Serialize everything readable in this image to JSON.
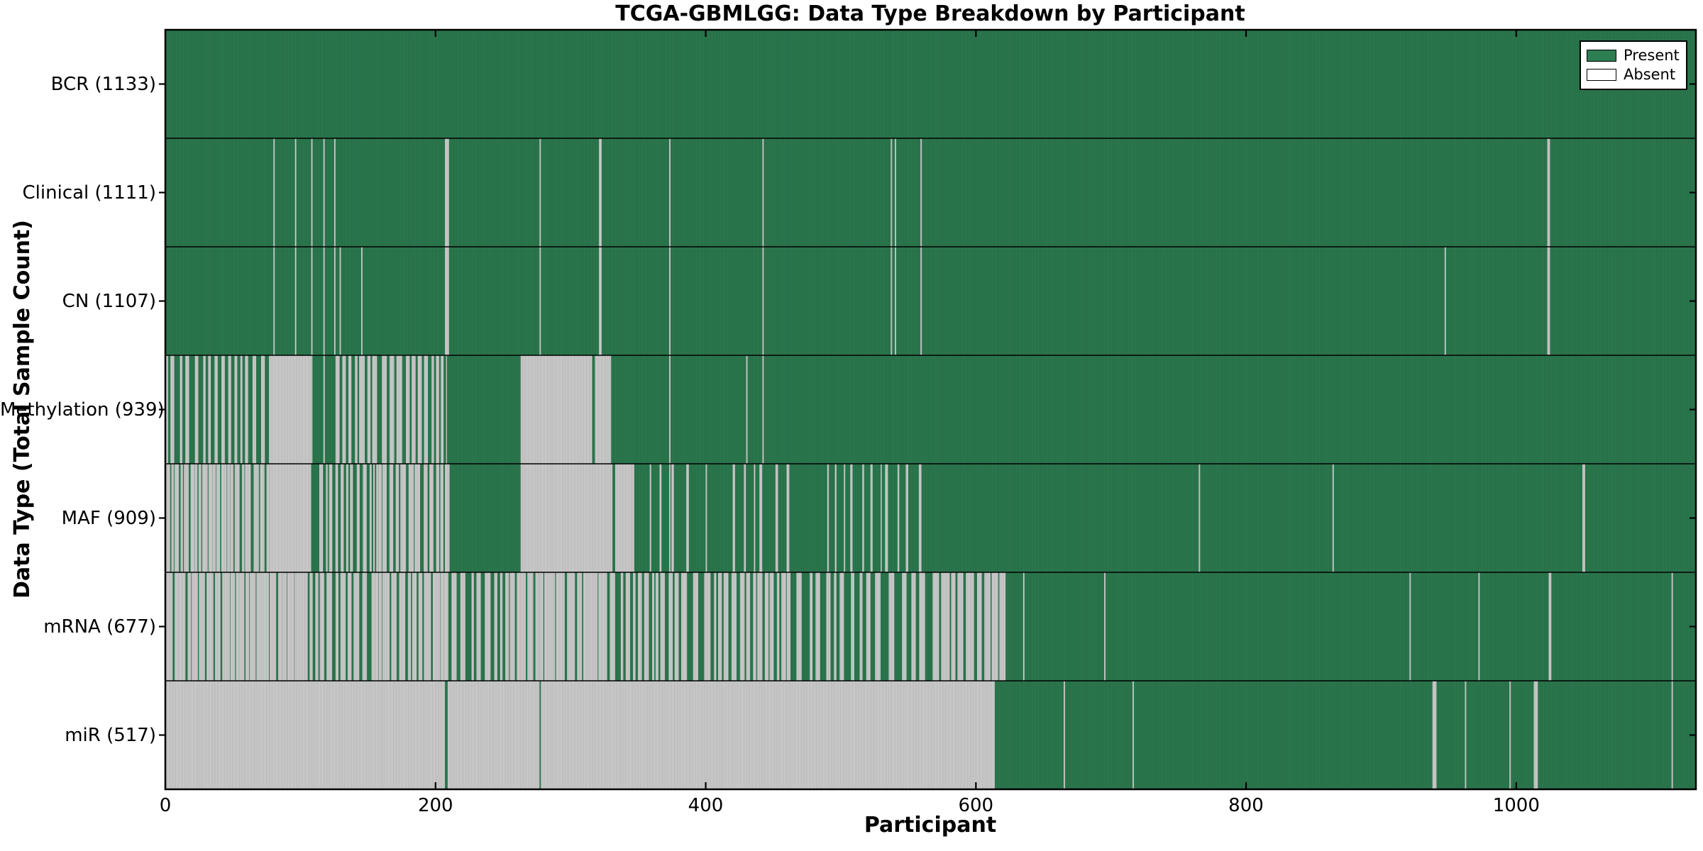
{
  "page": {
    "title": "TCGA-GBMLGG: Data Type Breakdown by Participant",
    "xlabel": "Participant",
    "ylabel": "Data Type (Total Sample Count)"
  },
  "legend": {
    "items": [
      {
        "label": "Present",
        "color": "#2d7e52"
      },
      {
        "label": "Absent",
        "color": "#ffffff"
      }
    ]
  },
  "chart_data": {
    "type": "heatmap",
    "title": "TCGA-GBMLGG: Data Type Breakdown by Participant",
    "xlabel": "Participant",
    "ylabel": "Data Type (Total Sample Count)",
    "x_domain": [
      0,
      1133
    ],
    "x_ticks": [
      0,
      200,
      400,
      600,
      800,
      1000
    ],
    "grid": "row-boundaries",
    "legend_position": "upper-right",
    "colors": {
      "present": "#2d7e52",
      "absent": "#d6d6d6",
      "cell_edge": "rgba(0,0,0,0.30)",
      "spine": "#000000"
    },
    "rows": [
      {
        "label": "BCR (1133)",
        "name": "BCR",
        "total_samples": 1133,
        "absent": [],
        "mixed": []
      },
      {
        "label": "Clinical (1111)",
        "name": "Clinical",
        "total_samples": 1111,
        "absent": [
          [
            80,
            81
          ],
          [
            96,
            97
          ],
          [
            108,
            109
          ],
          [
            117,
            118
          ],
          [
            125,
            126
          ],
          [
            207,
            210
          ],
          [
            277,
            278
          ],
          [
            321,
            323
          ],
          [
            373,
            374
          ],
          [
            442,
            443
          ],
          [
            537,
            538
          ],
          [
            540,
            541
          ],
          [
            559,
            560
          ],
          [
            1023,
            1025
          ]
        ],
        "mixed": []
      },
      {
        "label": "CN (1107)",
        "name": "CN",
        "total_samples": 1107,
        "absent": [
          [
            80,
            81
          ],
          [
            96,
            97
          ],
          [
            108,
            109
          ],
          [
            117,
            118
          ],
          [
            125,
            126
          ],
          [
            129,
            130
          ],
          [
            145,
            146
          ],
          [
            207,
            210
          ],
          [
            277,
            278
          ],
          [
            321,
            323
          ],
          [
            373,
            374
          ],
          [
            442,
            443
          ],
          [
            537,
            538
          ],
          [
            540,
            541
          ],
          [
            559,
            560
          ],
          [
            947,
            948
          ],
          [
            1023,
            1025
          ]
        ],
        "mixed": []
      },
      {
        "label": "Methylation (939)",
        "name": "Methylation",
        "total_samples": 939,
        "absent": [
          [
            77,
            108
          ],
          [
            263,
            316
          ],
          [
            318,
            330
          ],
          [
            373,
            374
          ],
          [
            430,
            431
          ],
          [
            442,
            443
          ]
        ],
        "mixed": [
          {
            "s": 0,
            "e": 77,
            "f": 0.45,
            "w": 2
          },
          {
            "s": 108,
            "e": 126,
            "f": 0.12,
            "w": 1
          },
          {
            "s": 126,
            "e": 208,
            "f": 0.55,
            "w": 3
          }
        ]
      },
      {
        "label": "MAF (909)",
        "name": "MAF",
        "total_samples": 909,
        "absent": [
          [
            77,
            108
          ],
          [
            263,
            331
          ],
          [
            333,
            345
          ],
          [
            373,
            374
          ],
          [
            400,
            401
          ],
          [
            765,
            766
          ],
          [
            864,
            865
          ],
          [
            1049,
            1051
          ]
        ],
        "mixed": [
          {
            "s": 0,
            "e": 77,
            "f": 0.78,
            "w": 3
          },
          {
            "s": 114,
            "e": 158,
            "f": 0.5,
            "w": 2
          },
          {
            "s": 158,
            "e": 211,
            "f": 0.72,
            "w": 3
          },
          {
            "s": 345,
            "e": 395,
            "f": 0.18,
            "w": 1.5
          },
          {
            "s": 420,
            "e": 470,
            "f": 0.2,
            "w": 1.5
          },
          {
            "s": 490,
            "e": 560,
            "f": 0.22,
            "w": 1.5
          }
        ]
      },
      {
        "label": "mRNA (677)",
        "name": "mRNA",
        "total_samples": 677,
        "absent": [
          [
            635,
            636
          ],
          [
            695,
            696
          ],
          [
            921,
            922
          ],
          [
            972,
            973
          ],
          [
            1024,
            1026
          ],
          [
            1115,
            1116
          ]
        ],
        "mixed": [
          {
            "s": 0,
            "e": 103,
            "f": 0.88,
            "w": 4
          },
          {
            "s": 103,
            "e": 155,
            "f": 0.6,
            "w": 3
          },
          {
            "s": 155,
            "e": 206,
            "f": 0.8,
            "w": 4
          },
          {
            "s": 206,
            "e": 255,
            "f": 0.5,
            "w": 3
          },
          {
            "s": 255,
            "e": 323,
            "f": 0.85,
            "w": 5
          },
          {
            "s": 323,
            "e": 400,
            "f": 0.55,
            "w": 3
          },
          {
            "s": 400,
            "e": 460,
            "f": 0.65,
            "w": 3
          },
          {
            "s": 460,
            "e": 568,
            "f": 0.45,
            "w": 3
          },
          {
            "s": 568,
            "e": 622,
            "f": 0.7,
            "w": 5
          }
        ]
      },
      {
        "label": "miR (517)",
        "name": "miR",
        "total_samples": 517,
        "absent": [
          [
            0,
            207
          ],
          [
            209,
            277
          ],
          [
            278,
            614
          ],
          [
            665,
            666
          ],
          [
            716,
            717
          ],
          [
            938,
            941
          ],
          [
            962,
            963
          ],
          [
            995,
            996
          ],
          [
            1013,
            1016
          ],
          [
            1115,
            1116
          ]
        ],
        "mixed": []
      }
    ]
  }
}
